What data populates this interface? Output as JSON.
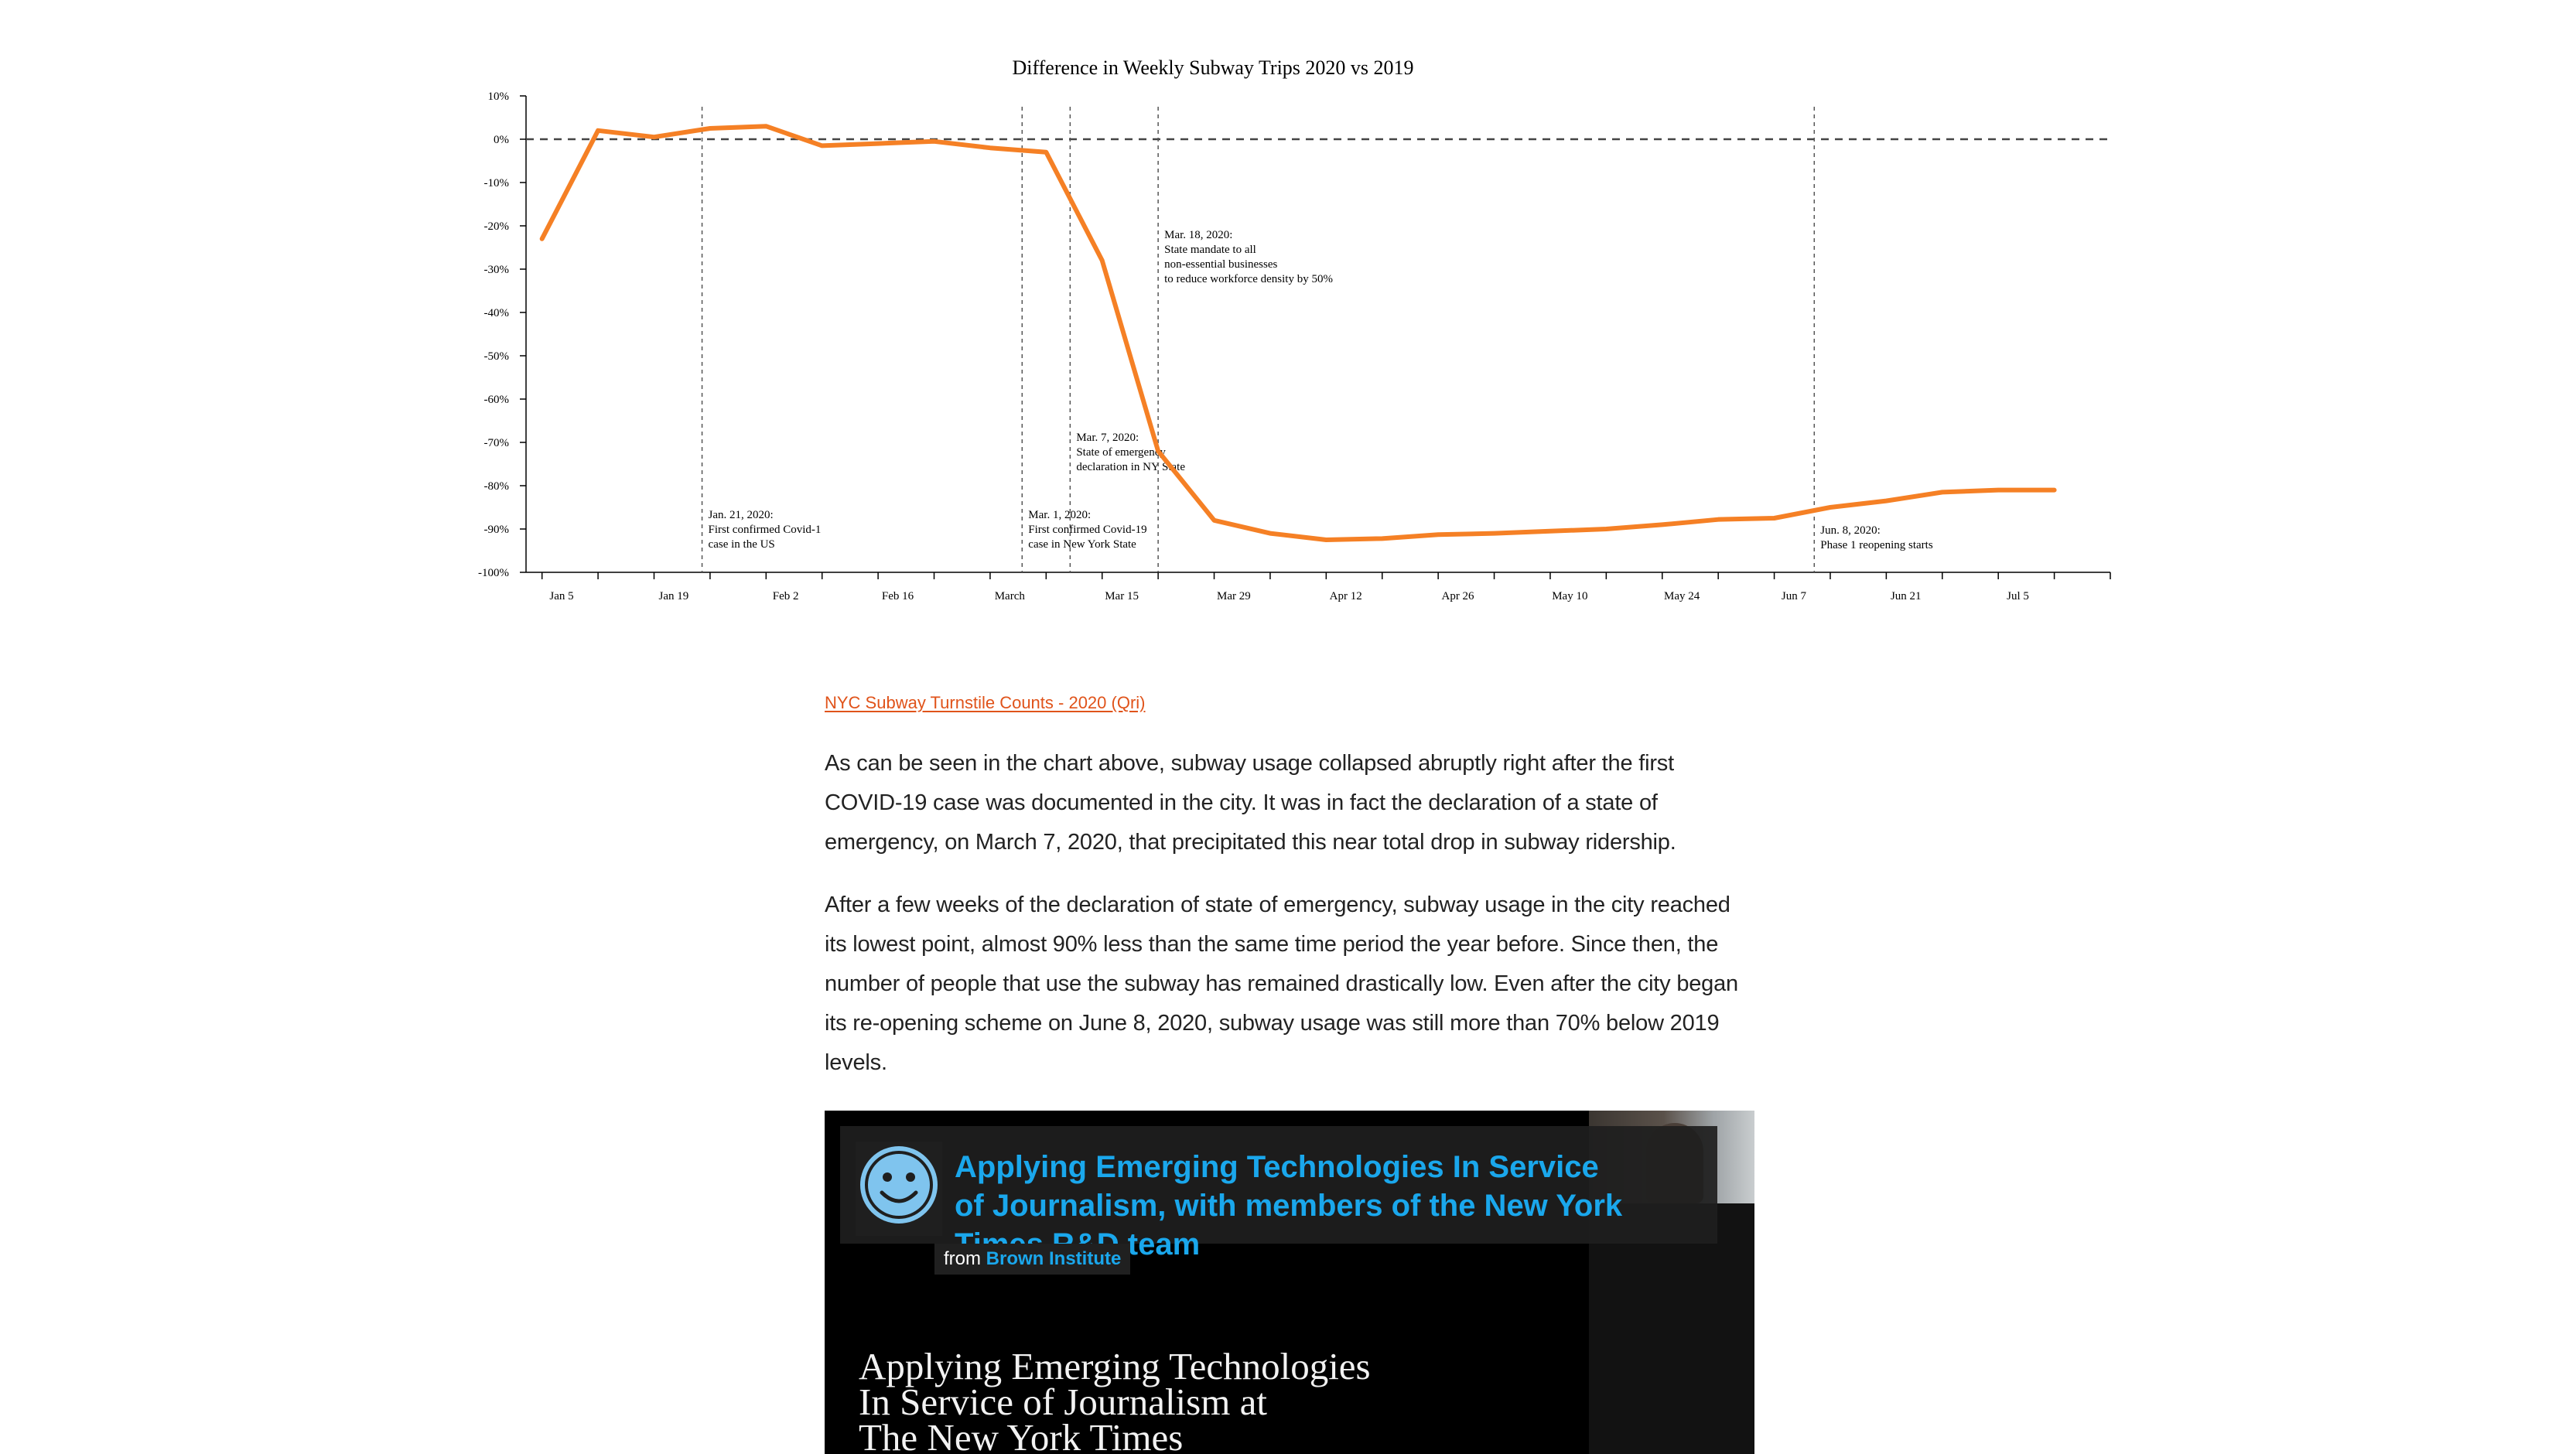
{
  "chart_data": {
    "type": "line",
    "title": "Difference in Weekly Subway Trips 2020 vs 2019",
    "xlabel": "",
    "ylabel": "",
    "ylim": [
      -100,
      10
    ],
    "yticks": [
      "10%",
      "0%",
      "-10%",
      "-20%",
      "-30%",
      "-40%",
      "-50%",
      "-60%",
      "-70%",
      "-80%",
      "-90%",
      "-100%"
    ],
    "xticks": [
      "Jan 5",
      "Jan 19",
      "Feb 2",
      "Feb 16",
      "March",
      "Mar 15",
      "Mar 29",
      "Apr 12",
      "Apr 26",
      "May 10",
      "May 24",
      "Jun 7",
      "Jun 21",
      "Jul 5"
    ],
    "grid": false,
    "reference_line": 0,
    "line_color": "#f58025",
    "series": [
      {
        "x": [
          "2020-01-01",
          "2020-01-08",
          "2020-01-15",
          "2020-01-22",
          "2020-01-29",
          "2020-02-05",
          "2020-02-12",
          "2020-02-19",
          "2020-02-26",
          "2020-03-04",
          "2020-03-11",
          "2020-03-18",
          "2020-03-25",
          "2020-04-01",
          "2020-04-08",
          "2020-04-15",
          "2020-04-22",
          "2020-04-29",
          "2020-05-06",
          "2020-05-13",
          "2020-05-20",
          "2020-05-27",
          "2020-06-03",
          "2020-06-10",
          "2020-06-17",
          "2020-06-24",
          "2020-07-01",
          "2020-07-08"
        ],
        "values": [
          -23,
          2,
          0.5,
          2.5,
          3,
          -1.5,
          -1,
          -0.5,
          -2,
          -3,
          -28,
          -72,
          -88,
          -91,
          -92.5,
          -92.2,
          -91.3,
          -91,
          -90.5,
          -90,
          -89,
          -87.8,
          -87.5,
          -85,
          -83.5,
          -81.5,
          -81,
          -81
        ]
      }
    ],
    "annotations": [
      {
        "date": "2020-01-21",
        "lines": [
          "Jan. 21, 2020:",
          "First confirmed Covid-1",
          "case in the US"
        ]
      },
      {
        "date": "2020-03-01",
        "lines": [
          "Mar. 1, 2020:",
          "First confirmed Covid-19",
          "case in New York State"
        ]
      },
      {
        "date": "2020-03-07",
        "lines": [
          "Mar. 7, 2020:",
          "State of emergency",
          "declaration in NY State"
        ]
      },
      {
        "date": "2020-03-18",
        "lines": [
          "Mar. 18, 2020:",
          "State mandate to all",
          "non-essential businesses",
          "to reduce workforce density by 50%"
        ]
      },
      {
        "date": "2020-06-08",
        "lines": [
          "Jun. 8, 2020:",
          "Phase 1 reopening starts"
        ]
      }
    ]
  },
  "article": {
    "source_link": "NYC Subway Turnstile Counts - 2020 (Qri)",
    "paragraphs": [
      "As can be seen in the chart above, subway usage collapsed abruptly right after the first COVID-19 case was documented in the city. It was in fact the declaration of a state of emergency, on March 7, 2020, that precipitated this near total drop in subway ridership.",
      "After a few weeks of the declaration of state of emergency, subway usage in the city reached its lowest point, almost 90% less than the same time period the year before. Since then, the number of people that use the subway has remained drastically low. Even after the city began its re-opening scheme on June 8, 2020, subway usage was still more than 70% below 2019 levels."
    ]
  },
  "video": {
    "title": "Applying Emerging Technologies In Service of Journalism, with members of the New York Times R&D team",
    "from_prefix": "from",
    "from_name": "Brown Institute",
    "slide_lines": [
      "Applying Emerging Technologies",
      "In Service of Journalism at",
      "The New York Times"
    ],
    "accent_color": "#1aa7ec"
  }
}
